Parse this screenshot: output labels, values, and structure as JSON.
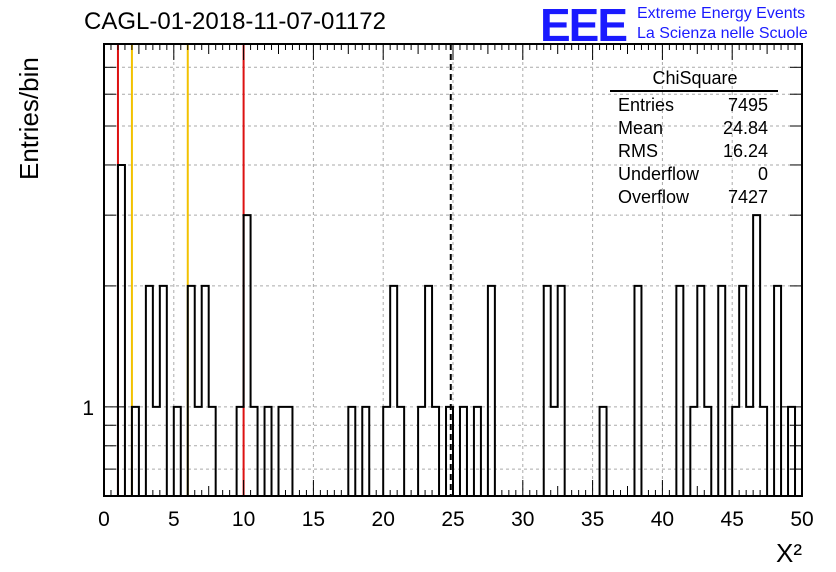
{
  "title": "CAGL-01-2018-11-07-01172",
  "logo": {
    "mark": "EEE",
    "line1": "Extreme Energy Events",
    "line2": "La Scienza nelle Scuole"
  },
  "stats_box": {
    "title": "ChiSquare",
    "rows": [
      {
        "key": "Entries",
        "value": "7495"
      },
      {
        "key": "Mean",
        "value": "24.84"
      },
      {
        "key": "RMS",
        "value": "16.24"
      },
      {
        "key": "Underflow",
        "value": "0"
      },
      {
        "key": "Overflow",
        "value": "7427"
      }
    ]
  },
  "colors": {
    "histogram": "#000000",
    "red_line": "#dd1111",
    "yellow_line": "#f2c200",
    "grid": "#aaaaaa",
    "logo": "#1a1aff"
  },
  "chart_data": {
    "type": "bar",
    "histogram": true,
    "title": "CAGL-01-2018-11-07-01172",
    "xlabel": "X²",
    "ylabel": "Entries/bin",
    "xlim": [
      0,
      50
    ],
    "ylim": [
      0.6,
      8
    ],
    "log_y": true,
    "grid": true,
    "bin_width": 0.5,
    "x_ticks": [
      0,
      5,
      10,
      15,
      20,
      25,
      30,
      35,
      40,
      45,
      50
    ],
    "y_tick_labels": [
      1
    ],
    "bins": [
      {
        "x": 1.0,
        "y": 4
      },
      {
        "x": 1.5,
        "y": 0
      },
      {
        "x": 2.0,
        "y": 1
      },
      {
        "x": 3.0,
        "y": 2
      },
      {
        "x": 3.5,
        "y": 1
      },
      {
        "x": 4.0,
        "y": 2
      },
      {
        "x": 5.0,
        "y": 1
      },
      {
        "x": 6.0,
        "y": 2
      },
      {
        "x": 6.5,
        "y": 1
      },
      {
        "x": 7.0,
        "y": 2
      },
      {
        "x": 7.5,
        "y": 1
      },
      {
        "x": 9.5,
        "y": 1
      },
      {
        "x": 10.0,
        "y": 3
      },
      {
        "x": 10.5,
        "y": 1
      },
      {
        "x": 11.5,
        "y": 1
      },
      {
        "x": 12.5,
        "y": 1
      },
      {
        "x": 13.0,
        "y": 1
      },
      {
        "x": 17.5,
        "y": 1
      },
      {
        "x": 18.5,
        "y": 1
      },
      {
        "x": 20.0,
        "y": 1
      },
      {
        "x": 20.5,
        "y": 2
      },
      {
        "x": 21.0,
        "y": 1
      },
      {
        "x": 22.5,
        "y": 1
      },
      {
        "x": 23.0,
        "y": 2
      },
      {
        "x": 23.5,
        "y": 1
      },
      {
        "x": 24.5,
        "y": 1
      },
      {
        "x": 25.5,
        "y": 1
      },
      {
        "x": 26.5,
        "y": 1
      },
      {
        "x": 27.5,
        "y": 2
      },
      {
        "x": 31.5,
        "y": 2
      },
      {
        "x": 32.0,
        "y": 1
      },
      {
        "x": 32.5,
        "y": 2
      },
      {
        "x": 35.5,
        "y": 1
      },
      {
        "x": 38.0,
        "y": 2
      },
      {
        "x": 41.0,
        "y": 2
      },
      {
        "x": 42.0,
        "y": 1
      },
      {
        "x": 42.5,
        "y": 2
      },
      {
        "x": 43.0,
        "y": 1
      },
      {
        "x": 44.0,
        "y": 2
      },
      {
        "x": 45.0,
        "y": 1
      },
      {
        "x": 45.5,
        "y": 2
      },
      {
        "x": 46.0,
        "y": 1
      },
      {
        "x": 46.5,
        "y": 3
      },
      {
        "x": 47.0,
        "y": 1
      },
      {
        "x": 48.0,
        "y": 2
      },
      {
        "x": 49.0,
        "y": 1
      }
    ],
    "vertical_lines": [
      {
        "x": 1,
        "color": "red"
      },
      {
        "x": 2,
        "color": "yellow"
      },
      {
        "x": 6,
        "color": "yellow"
      },
      {
        "x": 10,
        "color": "red"
      },
      {
        "x": 24.84,
        "style": "dashed"
      }
    ]
  }
}
